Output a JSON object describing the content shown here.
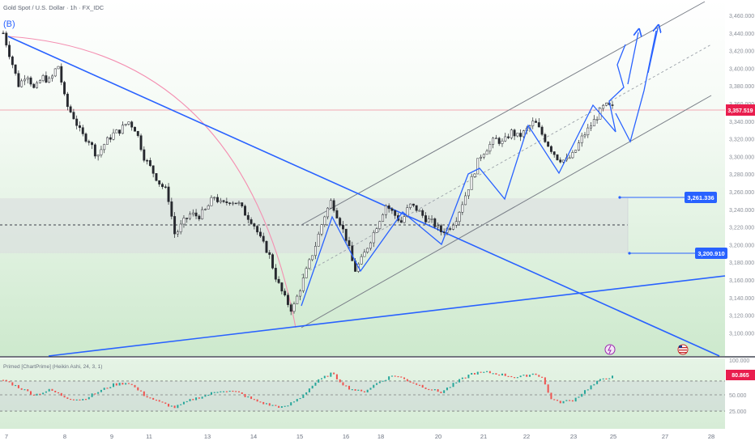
{
  "header": {
    "symbol_title": "Gold Spot / U.S. Dollar · 1h · FX_IDC",
    "wave_label": "(B)"
  },
  "colors": {
    "up": "#26a69a",
    "down": "#ef5350",
    "trend_line": "#2962ff",
    "channel_line": "#7a7f88",
    "arc": "#f48fb1",
    "price_tag": "#e91e4e",
    "target_tag": "#2962ff",
    "bg_gradient_bottom": "#cfead0"
  },
  "price_axis": {
    "labels": [
      "3,460.000",
      "3,440.000",
      "3,420.000",
      "3,400.000",
      "3,380.000",
      "3,360.000",
      "3,340.000",
      "3,320.000",
      "3,300.000",
      "3,280.000",
      "3,260.000",
      "3,240.000",
      "3,220.000",
      "3,200.000",
      "3,180.000",
      "3,160.000",
      "3,140.000",
      "3,120.000",
      "3,100.000"
    ],
    "current_price": "3,357.519",
    "current_price_value": 3357.5
  },
  "targets": [
    {
      "label": "3,261.336",
      "value": 3261.3
    },
    {
      "label": "3,200.910",
      "value": 3200.9
    }
  ],
  "indicator": {
    "title": "Primed [ChartPrime] (Heikin Ashi, 24, 3, 1)",
    "labels": [
      "100.000",
      "80.865",
      "50.000",
      "25.000"
    ],
    "current": "80.865",
    "current_value": 80.865
  },
  "time_axis": {
    "labels": [
      "7",
      "8",
      "9",
      "11",
      "13",
      "14",
      "15",
      "16",
      "18",
      "20",
      "21",
      "22",
      "23",
      "25",
      "27",
      "28"
    ]
  },
  "chart_data": {
    "type": "candlestick",
    "title": "Gold Spot / U.S. Dollar · 1h · FX_IDC",
    "ylim": [
      3090,
      3470
    ],
    "price_path": [
      [
        0,
        3440
      ],
      [
        2,
        3410
      ],
      [
        4,
        3380
      ],
      [
        6,
        3395
      ],
      [
        8,
        3375
      ],
      [
        10,
        3390
      ],
      [
        12,
        3385
      ],
      [
        14,
        3405
      ],
      [
        16,
        3360
      ],
      [
        18,
        3345
      ],
      [
        20,
        3325
      ],
      [
        22,
        3318
      ],
      [
        24,
        3300
      ],
      [
        26,
        3315
      ],
      [
        28,
        3325
      ],
      [
        30,
        3330
      ],
      [
        32,
        3340
      ],
      [
        34,
        3330
      ],
      [
        36,
        3300
      ],
      [
        38,
        3285
      ],
      [
        40,
        3270
      ],
      [
        42,
        3260
      ],
      [
        44,
        3210
      ],
      [
        46,
        3225
      ],
      [
        48,
        3235
      ],
      [
        50,
        3232
      ],
      [
        52,
        3240
      ],
      [
        54,
        3255
      ],
      [
        56,
        3245
      ],
      [
        58,
        3250
      ],
      [
        60,
        3248
      ],
      [
        62,
        3235
      ],
      [
        64,
        3225
      ],
      [
        66,
        3205
      ],
      [
        68,
        3190
      ],
      [
        70,
        3160
      ],
      [
        72,
        3140
      ],
      [
        74,
        3125
      ],
      [
        76,
        3150
      ],
      [
        78,
        3175
      ],
      [
        80,
        3200
      ],
      [
        82,
        3230
      ],
      [
        84,
        3250
      ],
      [
        86,
        3228
      ],
      [
        88,
        3205
      ],
      [
        90,
        3170
      ],
      [
        92,
        3185
      ],
      [
        94,
        3205
      ],
      [
        96,
        3225
      ],
      [
        98,
        3245
      ],
      [
        100,
        3235
      ],
      [
        102,
        3225
      ],
      [
        104,
        3245
      ],
      [
        106,
        3240
      ],
      [
        108,
        3230
      ],
      [
        110,
        3225
      ],
      [
        112,
        3215
      ],
      [
        114,
        3218
      ],
      [
        116,
        3230
      ],
      [
        118,
        3252
      ],
      [
        120,
        3275
      ],
      [
        122,
        3300
      ],
      [
        124,
        3310
      ],
      [
        126,
        3320
      ],
      [
        128,
        3315
      ],
      [
        130,
        3328
      ],
      [
        132,
        3322
      ],
      [
        134,
        3330
      ],
      [
        136,
        3340
      ],
      [
        138,
        3325
      ],
      [
        140,
        3310
      ],
      [
        142,
        3298
      ],
      [
        144,
        3295
      ],
      [
        146,
        3302
      ],
      [
        148,
        3320
      ],
      [
        150,
        3332
      ],
      [
        152,
        3345
      ],
      [
        154,
        3358
      ],
      [
        156,
        3355
      ]
    ],
    "indicator_series": [
      [
        0,
        75
      ],
      [
        4,
        60
      ],
      [
        8,
        45
      ],
      [
        12,
        55
      ],
      [
        16,
        40
      ],
      [
        20,
        35
      ],
      [
        24,
        50
      ],
      [
        28,
        65
      ],
      [
        32,
        70
      ],
      [
        36,
        45
      ],
      [
        40,
        30
      ],
      [
        44,
        20
      ],
      [
        48,
        35
      ],
      [
        52,
        45
      ],
      [
        56,
        55
      ],
      [
        60,
        50
      ],
      [
        64,
        35
      ],
      [
        68,
        25
      ],
      [
        72,
        20
      ],
      [
        76,
        40
      ],
      [
        80,
        70
      ],
      [
        84,
        88
      ],
      [
        88,
        60
      ],
      [
        92,
        50
      ],
      [
        96,
        70
      ],
      [
        100,
        85
      ],
      [
        104,
        72
      ],
      [
        108,
        60
      ],
      [
        112,
        50
      ],
      [
        116,
        70
      ],
      [
        120,
        88
      ],
      [
        124,
        90
      ],
      [
        128,
        85
      ],
      [
        132,
        80
      ],
      [
        136,
        88
      ],
      [
        138,
        80
      ],
      [
        140,
        40
      ],
      [
        142,
        30
      ],
      [
        146,
        35
      ],
      [
        150,
        60
      ],
      [
        154,
        80
      ],
      [
        156,
        80.865
      ]
    ]
  }
}
